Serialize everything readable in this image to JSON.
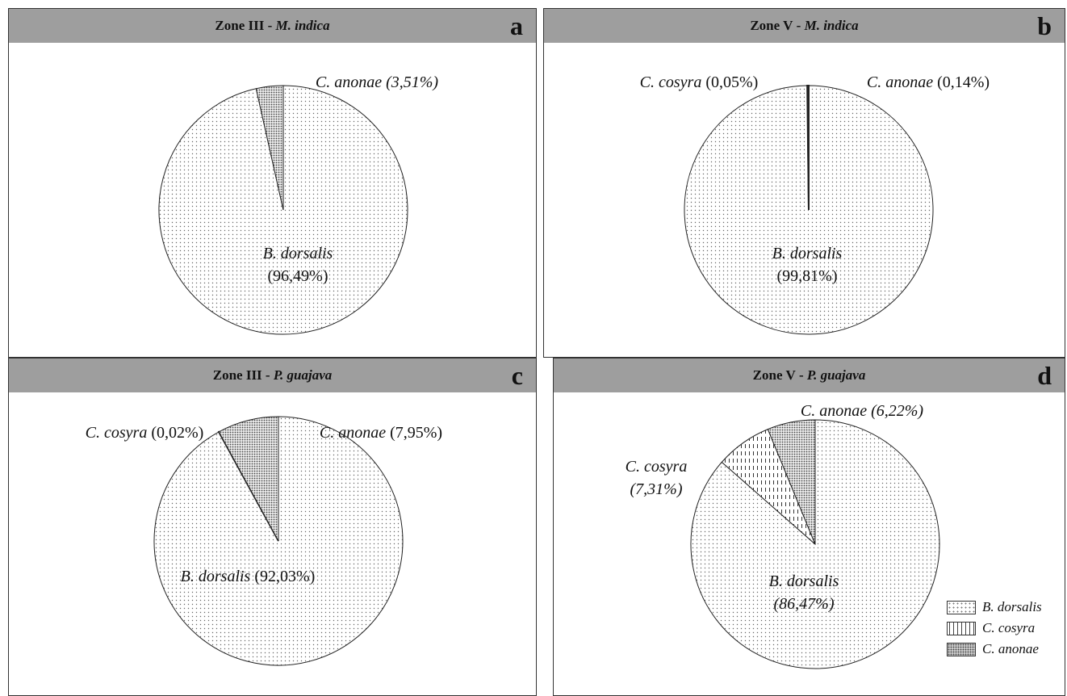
{
  "chart_data": [
    {
      "type": "pie",
      "panel_letter": "a",
      "title_zone": "Zone III",
      "title_sep": " - ",
      "title_species": "M. indica",
      "slices": [
        {
          "name": "B. dorsalis",
          "value": 96.49,
          "label_name": "B. dorsalis",
          "label_value": "(96,49%)",
          "pattern": "dots"
        },
        {
          "name": "C. anonae",
          "value": 3.51,
          "label_name": "C. anonae",
          "label_value": "(3,51%)",
          "pattern": "dense"
        }
      ]
    },
    {
      "type": "pie",
      "panel_letter": "b",
      "title_zone": "Zone V",
      "title_sep": " - ",
      "title_species": "M. indica",
      "slices": [
        {
          "name": "B. dorsalis",
          "value": 99.81,
          "label_name": "B. dorsalis",
          "label_value": "(99,81%)",
          "pattern": "dots"
        },
        {
          "name": "C. cosyra",
          "value": 0.05,
          "label_name": "C. cosyra",
          "label_value": "(0,05%)",
          "pattern": "dash"
        },
        {
          "name": "C. anonae",
          "value": 0.14,
          "label_name": "C. anonae",
          "label_value": "(0,14%)",
          "pattern": "dense"
        }
      ]
    },
    {
      "type": "pie",
      "panel_letter": "c",
      "title_zone": "Zone III",
      "title_sep": " - ",
      "title_species": "P. guajava",
      "slices": [
        {
          "name": "B. dorsalis",
          "value": 92.03,
          "label_name": "B. dorsalis",
          "label_value": "(92,03%)",
          "pattern": "dots"
        },
        {
          "name": "C. cosyra",
          "value": 0.02,
          "label_name": "C. cosyra",
          "label_value": "(0,02%)",
          "pattern": "dash"
        },
        {
          "name": "C. anonae",
          "value": 7.95,
          "label_name": "C. anonae",
          "label_value": "(7,95%)",
          "pattern": "dense"
        }
      ]
    },
    {
      "type": "pie",
      "panel_letter": "d",
      "title_zone": "Zone V",
      "title_sep": " - ",
      "title_species": "P. guajava",
      "slices": [
        {
          "name": "B. dorsalis",
          "value": 86.47,
          "label_name": "B. dorsalis",
          "label_value": "(86,47%)",
          "pattern": "dots"
        },
        {
          "name": "C. cosyra",
          "value": 7.31,
          "label_name": "C. cosyra",
          "label_value": "(7,31%)",
          "pattern": "dash"
        },
        {
          "name": "C. anonae",
          "value": 6.22,
          "label_name": "C. anonae",
          "label_value": "(6,22%)",
          "pattern": "dense"
        }
      ]
    }
  ],
  "legend": [
    {
      "label": "B. dorsalis",
      "pattern": "dots"
    },
    {
      "label": "C. cosyra",
      "pattern": "dash"
    },
    {
      "label": "C. anonae",
      "pattern": "dense"
    }
  ]
}
